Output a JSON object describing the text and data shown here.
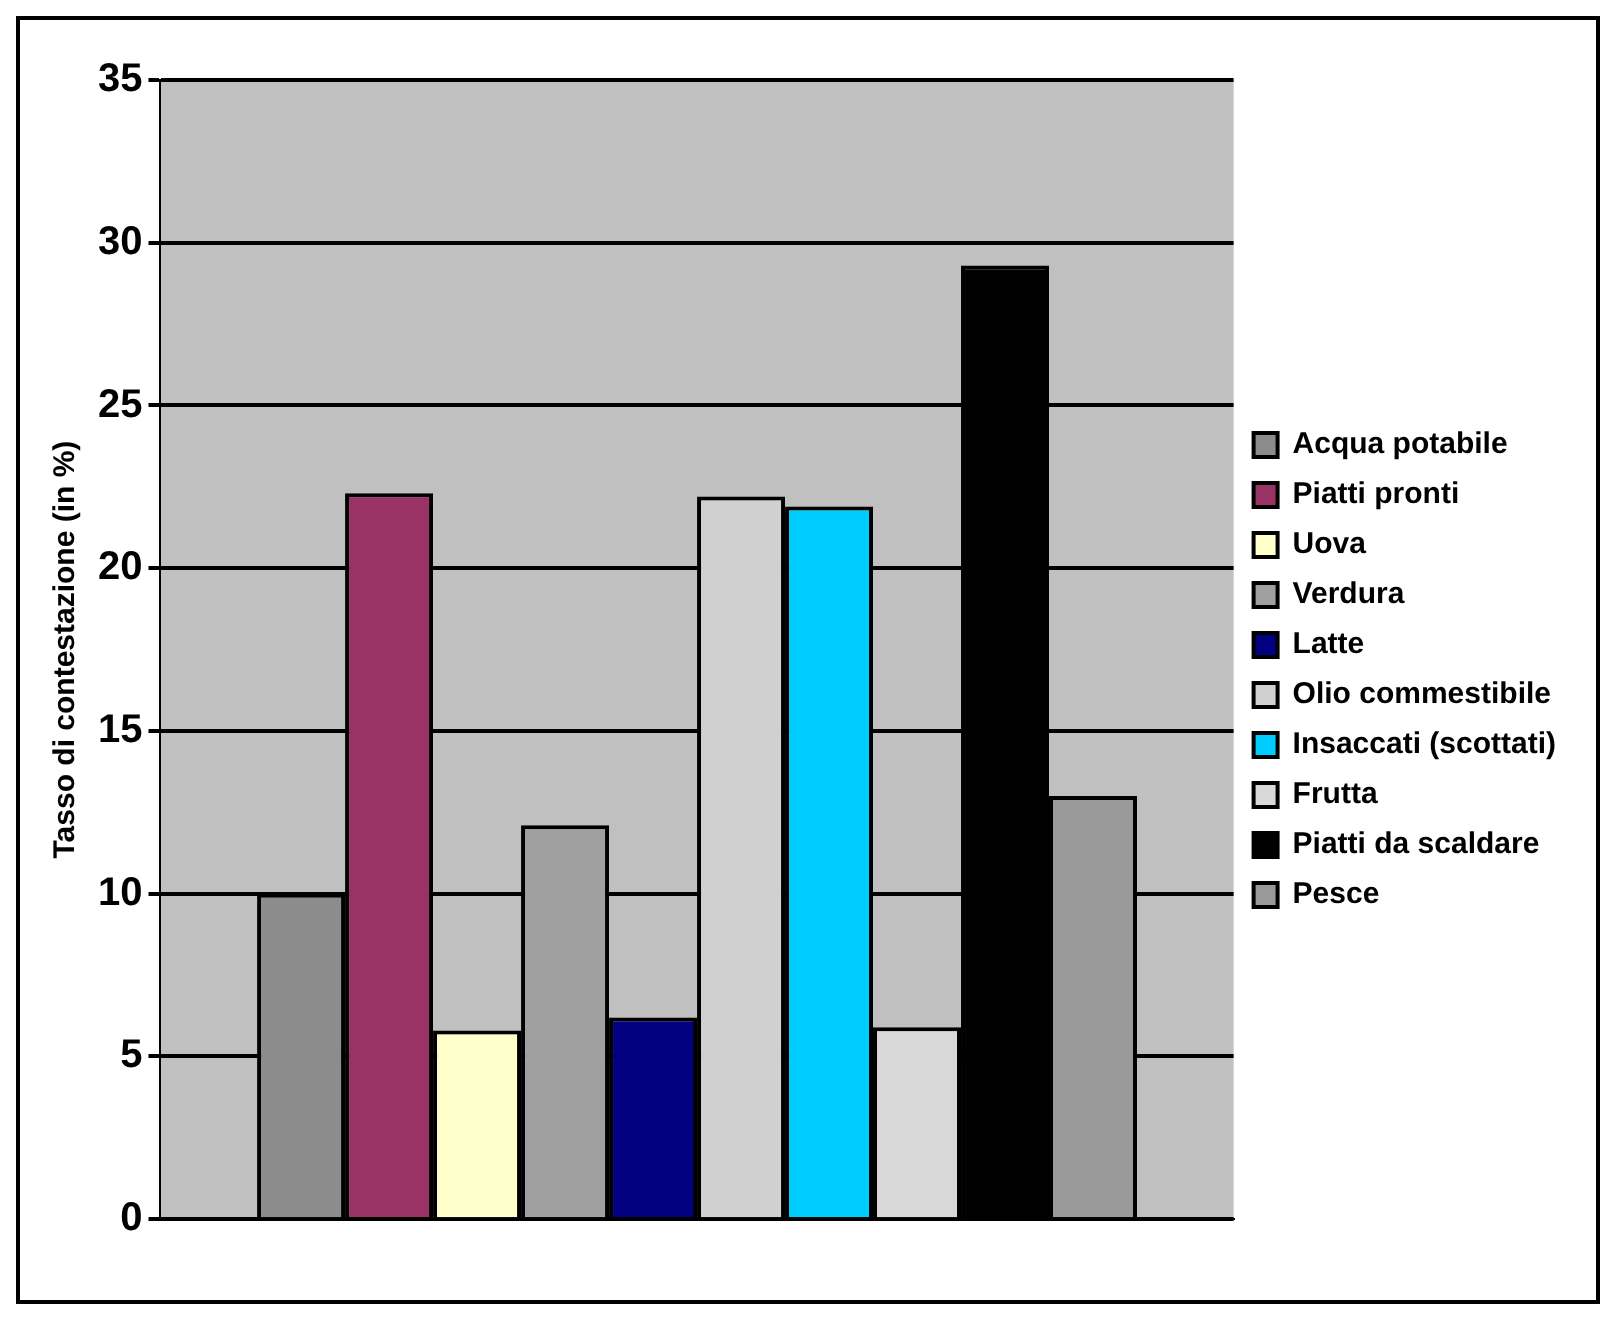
{
  "chart_data": {
    "type": "bar",
    "ylabel": "Tasso di contestazione (in %)",
    "categories": [
      null
    ],
    "series": [
      {
        "name": "Acqua potabile",
        "color": "#8c8c8c",
        "values": [
          10
        ]
      },
      {
        "name": "Piatti pronti",
        "color": "#993366",
        "values": [
          22.3
        ]
      },
      {
        "name": "Uova",
        "color": "#ffffcc",
        "values": [
          5.8
        ]
      },
      {
        "name": "Verdura",
        "color": "#a0a0a0",
        "values": [
          12.1
        ]
      },
      {
        "name": "Latte",
        "color": "#000080",
        "values": [
          6.2
        ]
      },
      {
        "name": "Olio commestibile",
        "color": "#d0d0d0",
        "values": [
          22.2
        ]
      },
      {
        "name": "Insaccati (scottati)",
        "color": "#00ccff",
        "values": [
          21.9
        ]
      },
      {
        "name": "Frutta",
        "color": "#d8d8d8",
        "values": [
          5.9
        ]
      },
      {
        "name": "Piatti da scaldare",
        "color": "#000000",
        "values": [
          29.3
        ]
      },
      {
        "name": "Pesce",
        "color": "#999999",
        "values": [
          13
        ]
      }
    ],
    "ylim": [
      0,
      35
    ],
    "yticks": [
      0,
      5,
      10,
      15,
      20,
      25,
      30,
      35
    ],
    "grid": "y",
    "legend": "right"
  }
}
